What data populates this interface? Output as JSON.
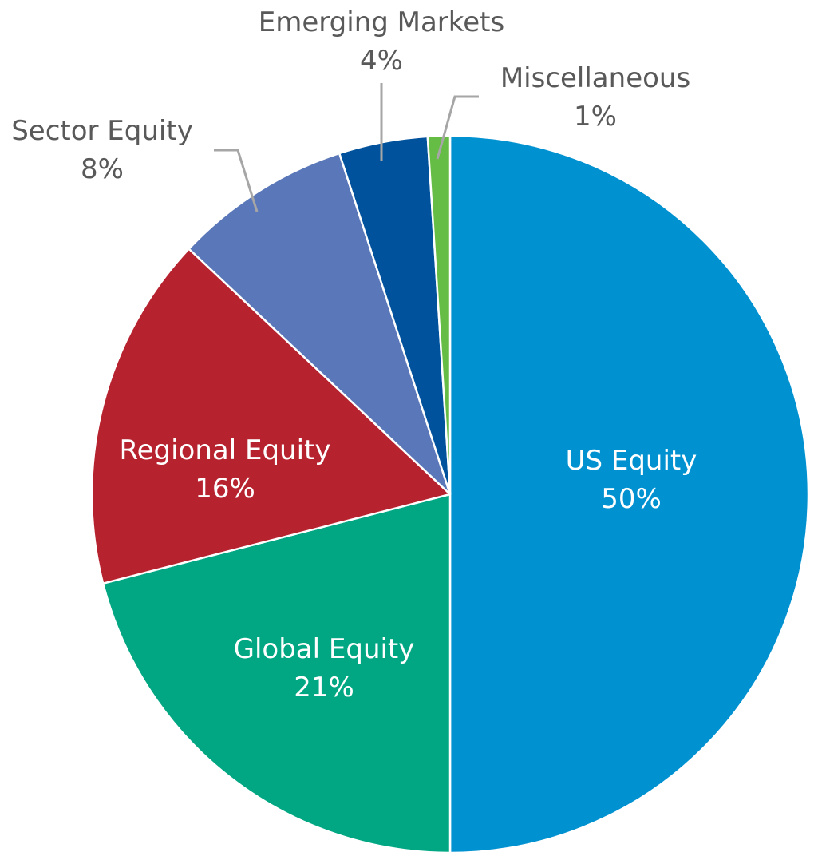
{
  "chart_data": {
    "type": "pie",
    "start_angle_deg": 0,
    "direction": "clockwise",
    "label_format": "{name}\n{value}%",
    "slices": [
      {
        "name": "US Equity",
        "value": 50,
        "color": "#0091D1",
        "label_position": "inside",
        "label_color": "#FFFFFF"
      },
      {
        "name": "Global Equity",
        "value": 21,
        "color": "#00A782",
        "label_position": "inside",
        "label_color": "#FFFFFF"
      },
      {
        "name": "Regional Equity",
        "value": 16,
        "color": "#B7222F",
        "label_position": "inside",
        "label_color": "#FFFFFF"
      },
      {
        "name": "Sector Equity",
        "value": 8,
        "color": "#5A78B9",
        "label_position": "outside",
        "label_color": "#595959"
      },
      {
        "name": "Emerging Markets",
        "value": 4,
        "color": "#00529C",
        "label_position": "outside",
        "label_color": "#595959"
      },
      {
        "name": "Miscellaneous",
        "value": 1,
        "color": "#66BD45",
        "label_position": "outside",
        "label_color": "#595959"
      }
    ],
    "leader_line_color": "#A6A6A6",
    "slice_border_color": "#FFFFFF"
  }
}
